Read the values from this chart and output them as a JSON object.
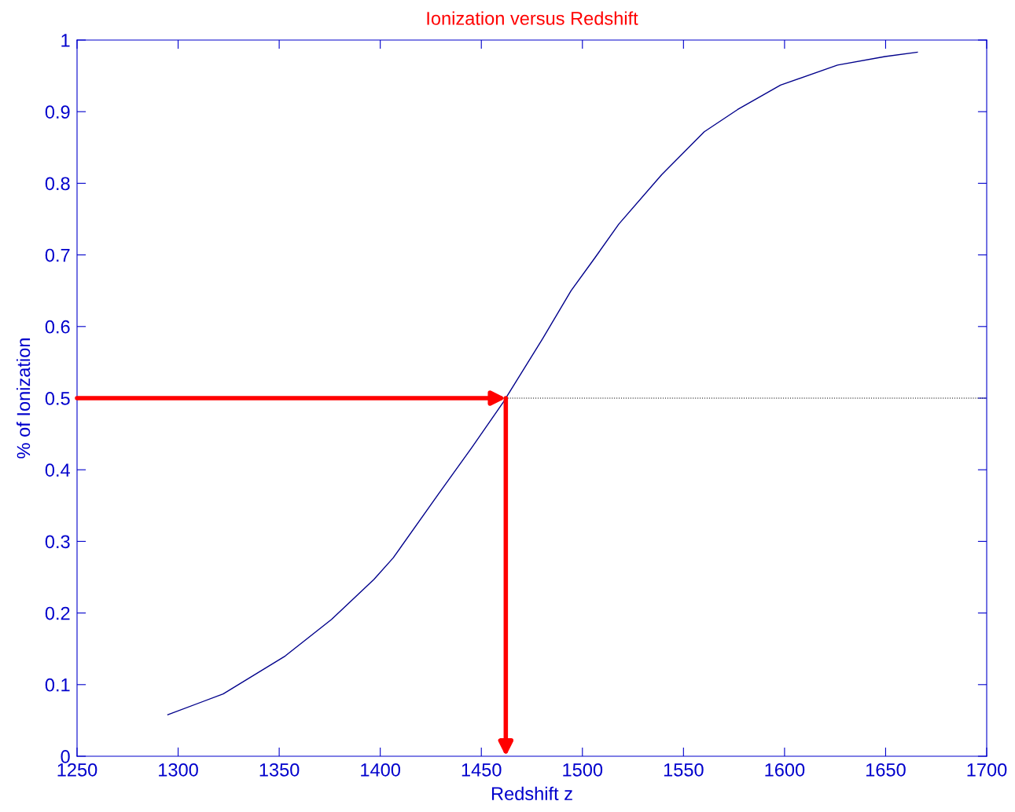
{
  "chart_data": {
    "type": "line",
    "title": "Ionization versus Redshift",
    "xlabel": "Redshift z",
    "ylabel": "% of Ionization",
    "x": [
      1294.9,
      1322.3,
      1353,
      1375.9,
      1396.9,
      1406.4,
      1428.5,
      1445.3,
      1461,
      1480.3,
      1494.4,
      1506.2,
      1518,
      1539.2,
      1560.3,
      1576.8,
      1598,
      1626.2,
      1649.7,
      1665.7
    ],
    "series": [
      {
        "color": "#00008b",
        "values": [
          0.058,
          0.087,
          0.14,
          0.191,
          0.247,
          0.277,
          0.365,
          0.431,
          0.495,
          0.583,
          0.65,
          0.696,
          0.743,
          0.812,
          0.872,
          0.903,
          0.937,
          0.965,
          0.977,
          0.983
        ]
      }
    ],
    "xlim": [
      1250,
      1700
    ],
    "ylim": [
      0,
      1
    ],
    "xticks": [
      1250,
      1300,
      1350,
      1400,
      1450,
      1500,
      1550,
      1600,
      1650,
      1700
    ],
    "yticks": [
      0,
      0.1,
      0.2,
      0.3,
      0.4,
      0.5,
      0.6,
      0.7,
      0.8,
      0.9,
      1
    ],
    "ref_lines": [
      {
        "axis": "y",
        "value": 0.5,
        "color": "#000000",
        "line_style": "dotted"
      }
    ],
    "grid": false,
    "legend": false,
    "marker": "none",
    "line_style": "solid"
  }
}
